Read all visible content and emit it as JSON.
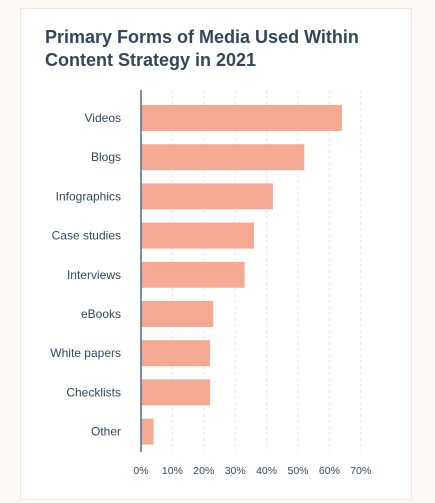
{
  "chart_data": {
    "type": "bar",
    "orientation": "horizontal",
    "title": "Primary Forms of Media Used Within Content Strategy in 2021",
    "categories": [
      "Videos",
      "Blogs",
      "Infographics",
      "Case studies",
      "Interviews",
      "eBooks",
      "White papers",
      "Checklists",
      "Other"
    ],
    "values": [
      64,
      52,
      42,
      36,
      33,
      23,
      22,
      22,
      4
    ],
    "x_ticks": [
      "0%",
      "10%",
      "20%",
      "30%",
      "40%",
      "50%",
      "60%",
      "70%"
    ],
    "xlim": [
      0,
      70
    ],
    "grid": "vertical dashed",
    "bar_color": "#f5a992",
    "axis_color": "#4a6d8c",
    "grid_color": "#e6e6e6",
    "text_color": "#33475b"
  }
}
